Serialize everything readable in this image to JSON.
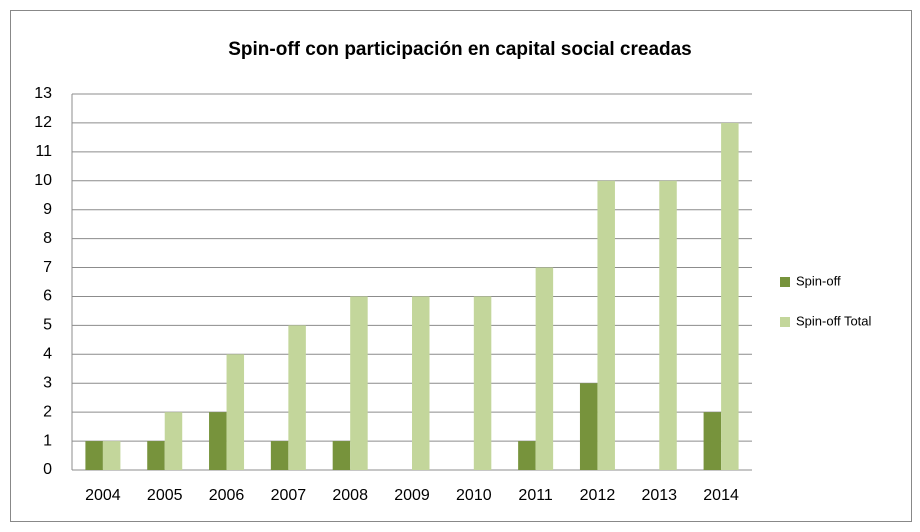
{
  "chart_data": {
    "type": "bar",
    "title": "Spin-off  con participación en capital social creadas",
    "categories": [
      "2004",
      "2005",
      "2006",
      "2007",
      "2008",
      "2009",
      "2010",
      "2011",
      "2012",
      "2013",
      "2014"
    ],
    "series": [
      {
        "name": "Spin-off",
        "color": "#77933c",
        "values": [
          1,
          1,
          2,
          1,
          1,
          0,
          0,
          1,
          3,
          0,
          2
        ]
      },
      {
        "name": "Spin-off Total",
        "color": "#c3d69b",
        "values": [
          1,
          2,
          4,
          5,
          6,
          6,
          6,
          7,
          10,
          10,
          12
        ]
      }
    ],
    "ylim": [
      0,
      13
    ],
    "yticks": [
      0,
      1,
      2,
      3,
      4,
      5,
      6,
      7,
      8,
      9,
      10,
      11,
      12,
      13
    ],
    "grid": true,
    "legend": "right"
  }
}
